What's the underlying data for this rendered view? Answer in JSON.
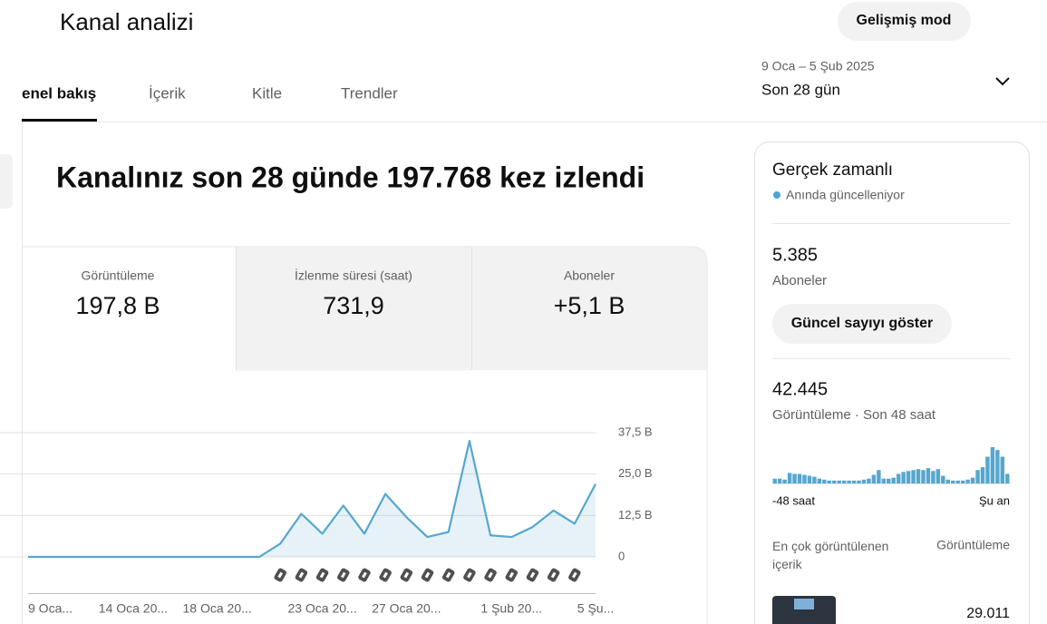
{
  "header": {
    "title": "Kanal analizi",
    "advanced_button": "Gelişmiş mod"
  },
  "date_range": {
    "range": "9 Oca – 5 Şub 2025",
    "period": "Son 28 gün"
  },
  "tabs": [
    "enel bakış",
    "İçerik",
    "Kitle",
    "Trendler"
  ],
  "headline": "Kanalınız son 28 günde 197.768 kez izlendi",
  "metrics": [
    {
      "label": "Görüntüleme",
      "value": "197,8 B"
    },
    {
      "label": "İzlenme süresi (saat)",
      "value": "731,9"
    },
    {
      "label": "Aboneler",
      "value": "+5,1 B"
    }
  ],
  "chart_data": {
    "type": "line",
    "categories": [
      "9 Oca...",
      null,
      null,
      null,
      null,
      "14 Oca 20...",
      null,
      null,
      null,
      "18 Oca 20...",
      null,
      null,
      null,
      null,
      "23 Oca 20...",
      null,
      null,
      null,
      "27 Oca 20...",
      null,
      null,
      null,
      null,
      "1 Şub 20...",
      null,
      null,
      null,
      "5 Şu..."
    ],
    "values": [
      0,
      0,
      0,
      0,
      0,
      0,
      0,
      0,
      0,
      0,
      0,
      0,
      4,
      13,
      7,
      15.5,
      7,
      19,
      12,
      6,
      7.5,
      35,
      6.5,
      6,
      9,
      14,
      10,
      22
    ],
    "color": "#56a7cf",
    "ylim": [
      0,
      37.5
    ],
    "yticks": [
      0,
      {
        "value": 12.5,
        "label": "12,5 B"
      },
      {
        "value": 25,
        "label": "25,0 B"
      },
      {
        "value": 37.5,
        "label": "37,5 B"
      }
    ],
    "grid": true
  },
  "realtime": {
    "title": "Gerçek zamanlı",
    "status": "Anında güncelleniyor",
    "subscribers": "5.385",
    "subscribers_label": "Aboneler",
    "show_button": "Güncel sayıyı göster",
    "views": "42.445",
    "views_label": "Görüntüleme · Son 48 saat",
    "chart": {
      "type": "bar",
      "color": "#56a7cf",
      "values": [
        5,
        5,
        4,
        11,
        10,
        10,
        9,
        8,
        7,
        5,
        4,
        3,
        3,
        3,
        3,
        3,
        3,
        3,
        4,
        5,
        9,
        14,
        5,
        5,
        6,
        10,
        12,
        13,
        14,
        15,
        14,
        16,
        13,
        15,
        8,
        4,
        3,
        3,
        3,
        4,
        6,
        14,
        17,
        28,
        38,
        35,
        28,
        10
      ],
      "start_label": "-48 saat",
      "end_label": "Şu an"
    },
    "top_content_label": "En çok görüntülenen içerik",
    "top_content_views_label": "Görüntüleme",
    "top_content": [
      {
        "views": "29.011"
      }
    ]
  }
}
